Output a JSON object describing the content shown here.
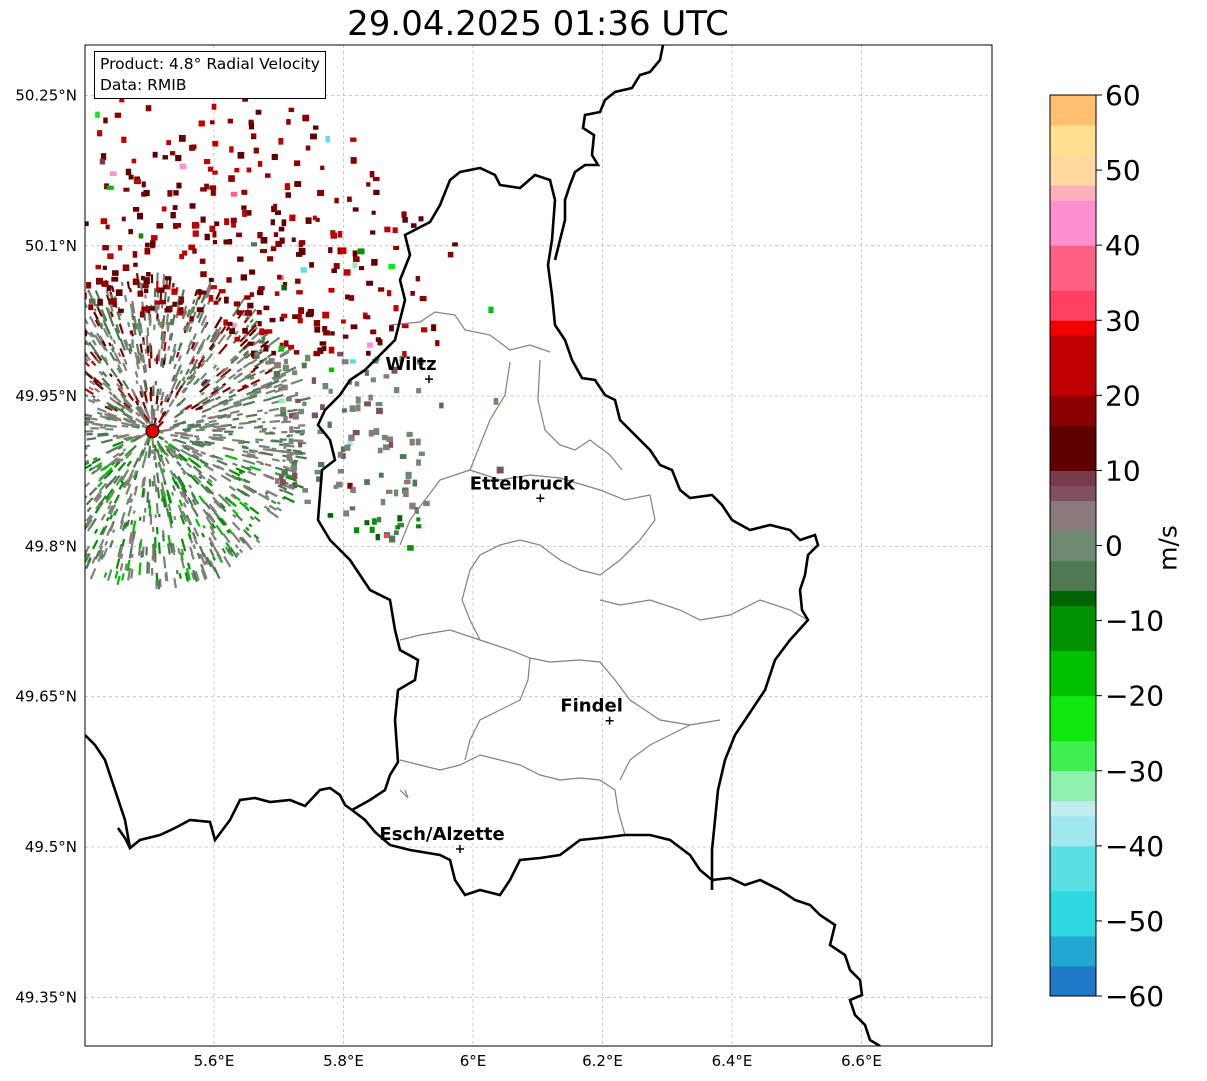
{
  "title": "29.04.2025 01:36 UTC",
  "info": {
    "product": "Product: 4.8° Radial Velocity",
    "data": "Data: RMIB"
  },
  "map": {
    "lon_range": [
      5.4,
      6.8
    ],
    "lat_range": [
      49.3,
      50.3
    ],
    "lat_ticks": [
      {
        "value": 50.25,
        "label": "50.25°N"
      },
      {
        "value": 50.1,
        "label": "50.1°N"
      },
      {
        "value": 49.95,
        "label": "49.95°N"
      },
      {
        "value": 49.8,
        "label": "49.8°N"
      },
      {
        "value": 49.65,
        "label": "49.65°N"
      },
      {
        "value": 49.5,
        "label": "49.5°N"
      },
      {
        "value": 49.35,
        "label": "49.35°N"
      }
    ],
    "lon_ticks": [
      {
        "value": 5.6,
        "label": "5.6°E"
      },
      {
        "value": 5.8,
        "label": "5.8°E"
      },
      {
        "value": 6.0,
        "label": "6°E"
      },
      {
        "value": 6.2,
        "label": "6.2°E"
      },
      {
        "value": 6.4,
        "label": "6.4°E"
      },
      {
        "value": 6.6,
        "label": "6.6°E"
      }
    ],
    "grid": true,
    "radar_site": {
      "lon": 5.505,
      "lat": 49.915,
      "color": "#e00000"
    },
    "cities": [
      {
        "name": "Wiltz",
        "lon": 5.932,
        "lat": 49.967
      },
      {
        "name": "Ettelbruck",
        "lon": 6.104,
        "lat": 49.848
      },
      {
        "name": "Findel",
        "lon": 6.211,
        "lat": 49.626
      },
      {
        "name": "Esch/Alzette",
        "lon": 5.98,
        "lat": 49.498
      }
    ]
  },
  "colorbar": {
    "label": "m/s",
    "min": -60,
    "max": 60,
    "ticks": [
      {
        "value": 60,
        "label": "60"
      },
      {
        "value": 50,
        "label": "50"
      },
      {
        "value": 40,
        "label": "40"
      },
      {
        "value": 30,
        "label": "30"
      },
      {
        "value": 20,
        "label": "20"
      },
      {
        "value": 10,
        "label": "10"
      },
      {
        "value": 0,
        "label": "0"
      },
      {
        "value": -10,
        "label": "−10"
      },
      {
        "value": -20,
        "label": "−20"
      },
      {
        "value": -30,
        "label": "−30"
      },
      {
        "value": -40,
        "label": "−40"
      },
      {
        "value": -50,
        "label": "−50"
      },
      {
        "value": -60,
        "label": "−60"
      }
    ],
    "stops": [
      {
        "v": -60,
        "c": "#1f78c8"
      },
      {
        "v": -56,
        "c": "#22a8d0"
      },
      {
        "v": -52,
        "c": "#2ed8e0"
      },
      {
        "v": -46,
        "c": "#5ae0e4"
      },
      {
        "v": -40,
        "c": "#a0e8ee"
      },
      {
        "v": -36,
        "c": "#c0eef0"
      },
      {
        "v": -34,
        "c": "#90f0b0"
      },
      {
        "v": -30,
        "c": "#40f050"
      },
      {
        "v": -26,
        "c": "#10e810"
      },
      {
        "v": -20,
        "c": "#00c000"
      },
      {
        "v": -14,
        "c": "#009000"
      },
      {
        "v": -8,
        "c": "#006400"
      },
      {
        "v": -6,
        "c": "#4e7a52"
      },
      {
        "v": -2,
        "c": "#6e8a70"
      },
      {
        "v": 2,
        "c": "#8a7a7a"
      },
      {
        "v": 6,
        "c": "#7e5060"
      },
      {
        "v": 8,
        "c": "#7a3b48"
      },
      {
        "v": 9,
        "c": "#600000"
      },
      {
        "v": 15,
        "c": "#8a0000"
      },
      {
        "v": 20,
        "c": "#c00000"
      },
      {
        "v": 27,
        "c": "#f00000"
      },
      {
        "v": 29,
        "c": "#ff4060"
      },
      {
        "v": 34,
        "c": "#ff6080"
      },
      {
        "v": 40,
        "c": "#ff90d0"
      },
      {
        "v": 45,
        "c": "#ffb0b8"
      },
      {
        "v": 48,
        "c": "#ffd8a0"
      },
      {
        "v": 51,
        "c": "#ffe090"
      },
      {
        "v": 55,
        "c": "#ffc070"
      },
      {
        "v": 60,
        "c": "#ff9850"
      }
    ]
  },
  "colors": {
    "border": "#000000",
    "canton": "#808080",
    "grid": "#bbbbbb"
  }
}
